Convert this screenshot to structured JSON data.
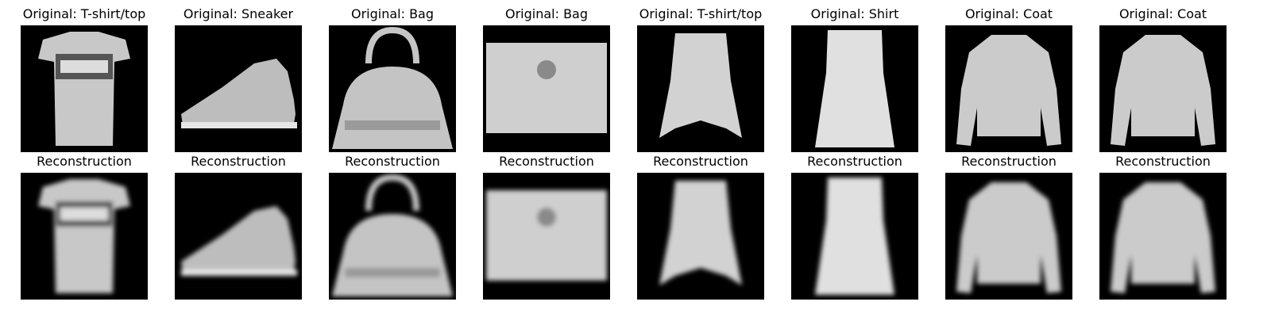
{
  "originals": [
    {
      "title": "Original: T-shirt/top",
      "item": "tshirt"
    },
    {
      "title": "Original: Sneaker",
      "item": "sneaker"
    },
    {
      "title": "Original: Bag",
      "item": "bag-handle"
    },
    {
      "title": "Original: Bag",
      "item": "bag-flat"
    },
    {
      "title": "Original: T-shirt/top",
      "item": "tank"
    },
    {
      "title": "Original: Shirt",
      "item": "dress"
    },
    {
      "title": "Original: Coat",
      "item": "coat"
    },
    {
      "title": "Original: Coat",
      "item": "coat"
    }
  ],
  "reconstructions": [
    {
      "title": "Reconstruction",
      "item": "tshirt"
    },
    {
      "title": "Reconstruction",
      "item": "sneaker"
    },
    {
      "title": "Reconstruction",
      "item": "bag-handle"
    },
    {
      "title": "Reconstruction",
      "item": "bag-flat"
    },
    {
      "title": "Reconstruction",
      "item": "tank"
    },
    {
      "title": "Reconstruction",
      "item": "dress"
    },
    {
      "title": "Reconstruction",
      "item": "coat"
    },
    {
      "title": "Reconstruction",
      "item": "coat"
    }
  ]
}
